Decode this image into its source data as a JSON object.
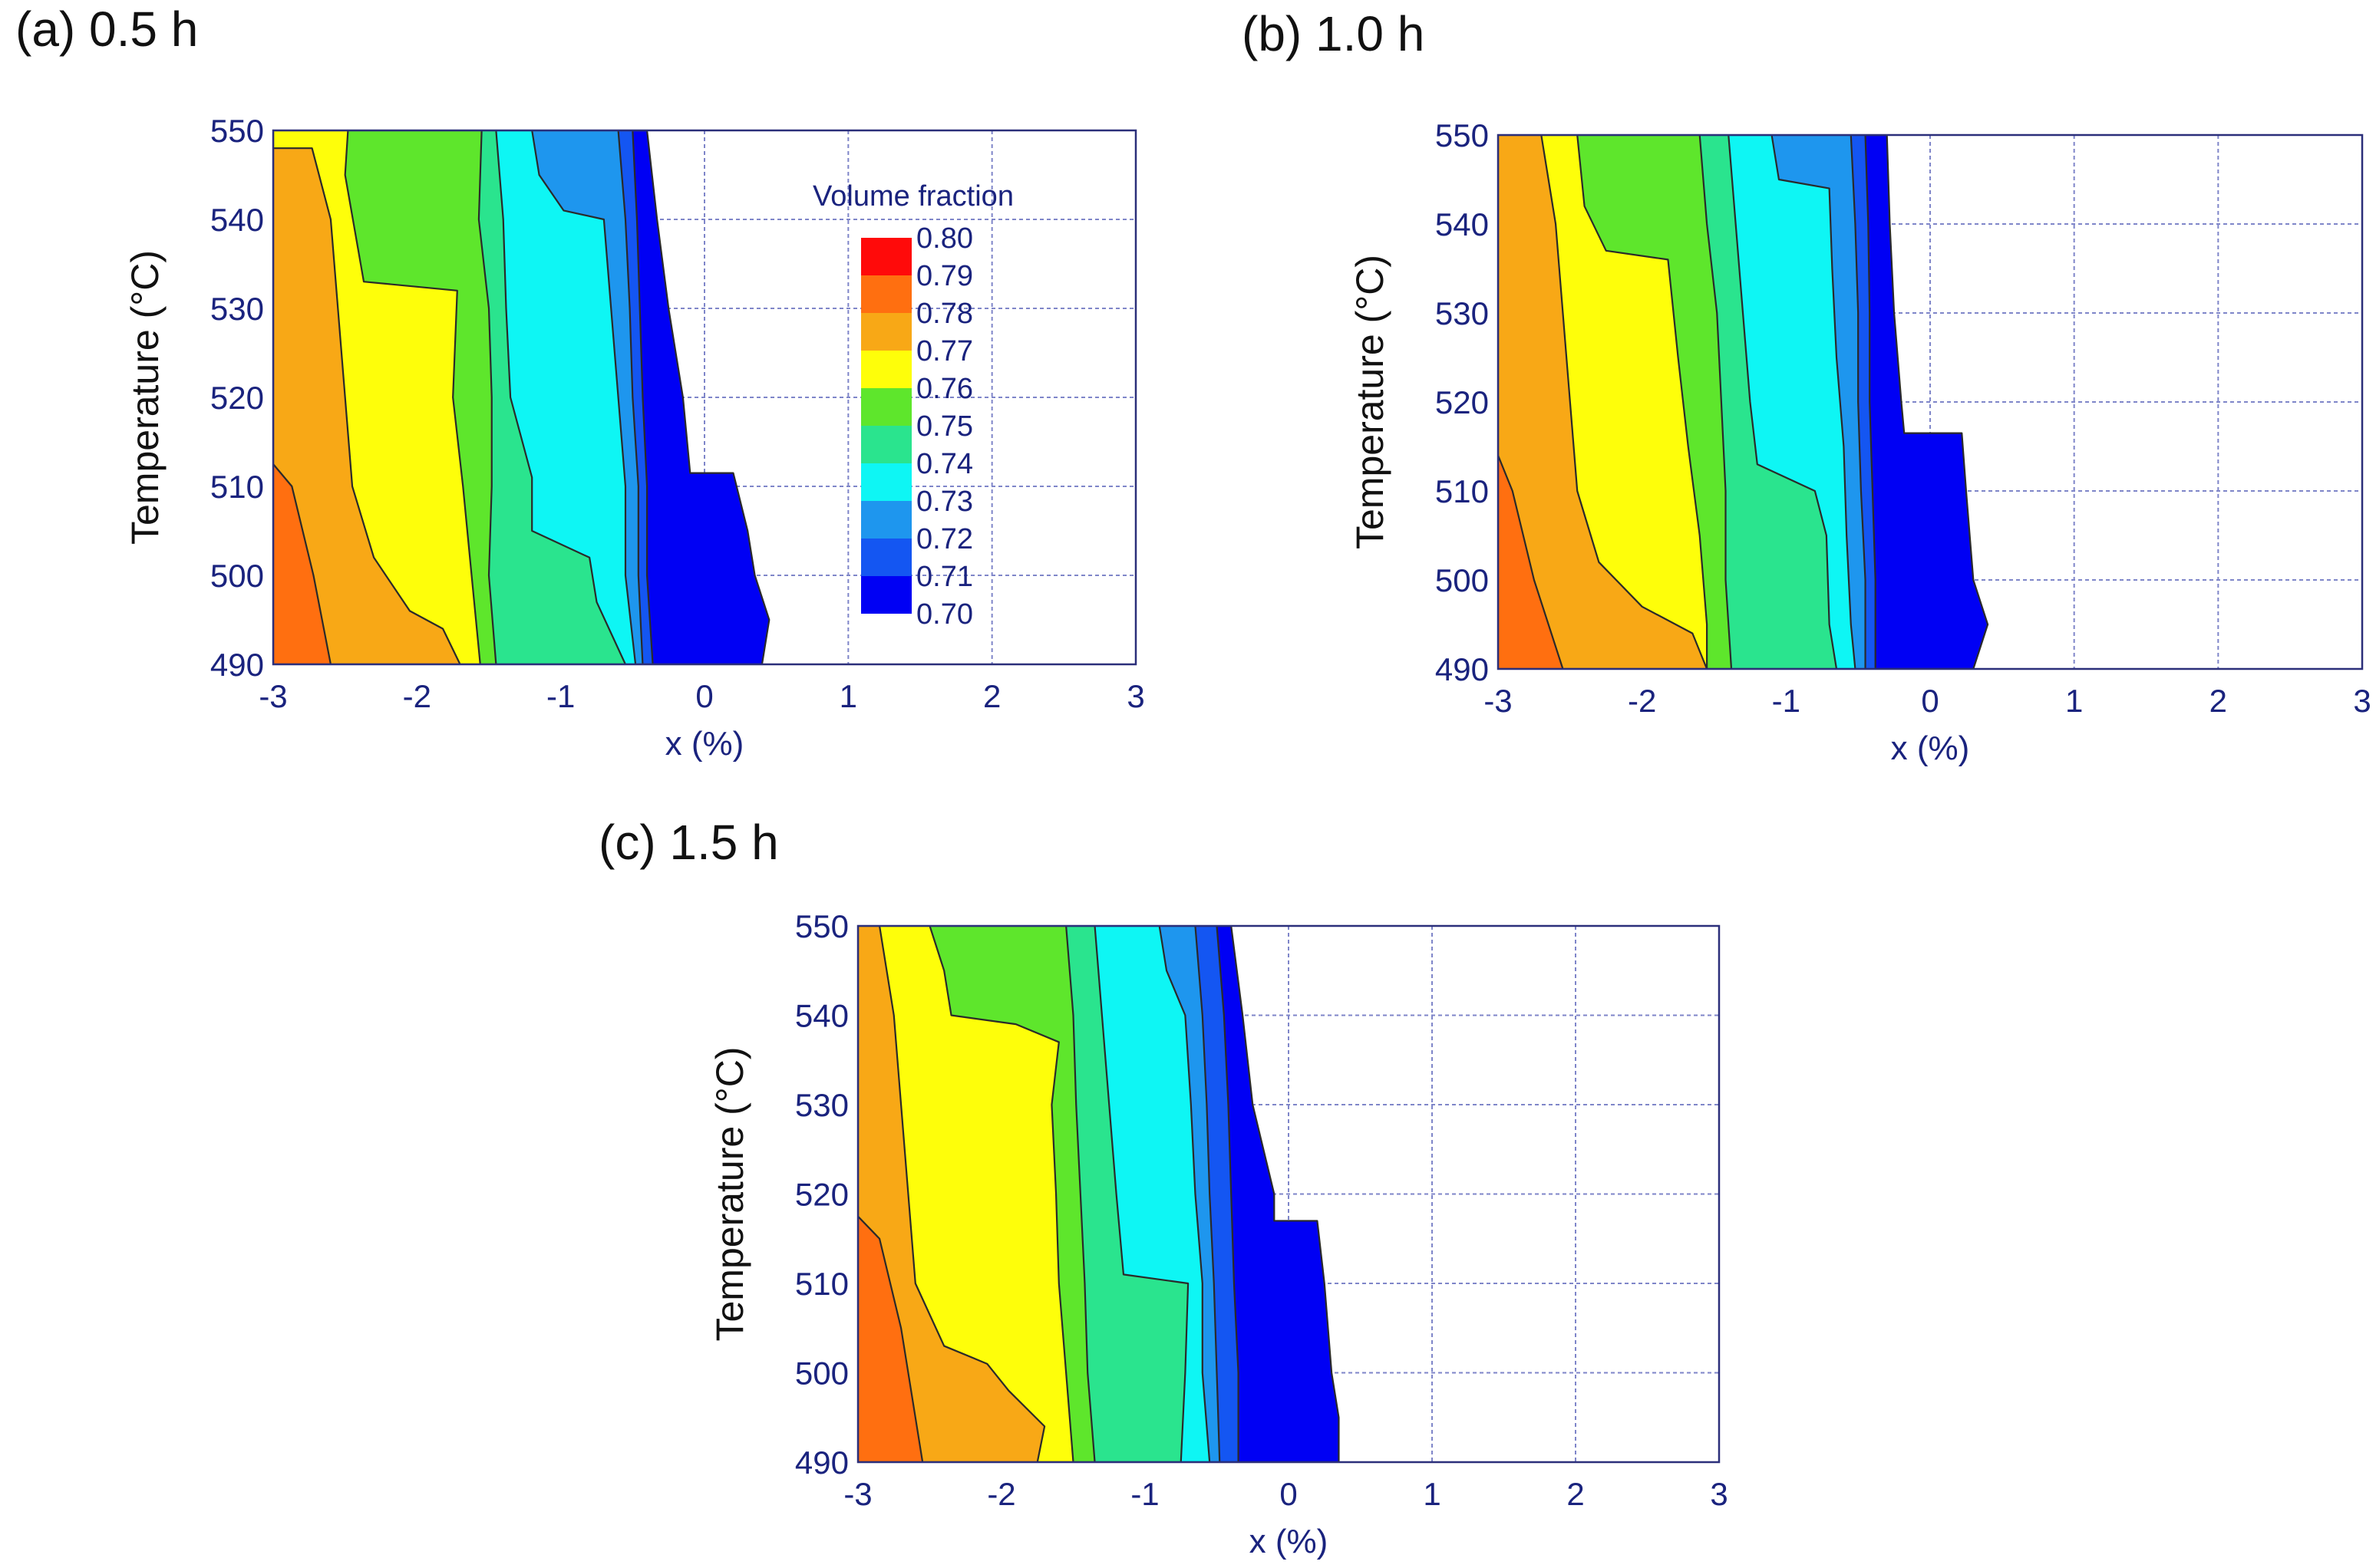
{
  "figure": {
    "colors": {
      "axis_text": "#1a237e",
      "grid": "#7f86c9",
      "frame": "#2b2f7a",
      "contour_line": "#2a2a2a",
      "background": "#ffffff"
    }
  },
  "colorbar": {
    "title": "Volume fraction",
    "levels": [
      "0.80",
      "0.79",
      "0.78",
      "0.77",
      "0.76",
      "0.75",
      "0.74",
      "0.73",
      "0.72",
      "0.71",
      "0.70"
    ],
    "colors": [
      "#ff0a0a",
      "#ff6f10",
      "#f8a816",
      "#fefe0a",
      "#5ee62c",
      "#2ae48e",
      "#0ef6f4",
      "#1e96ee",
      "#1456f2",
      "#0000f4"
    ]
  },
  "chart_data": [
    {
      "type": "filled-contour",
      "label": "(a) 0.5 h",
      "xlabel": "x (%)",
      "ylabel": "Temperature (°C)",
      "xlim": [
        -3,
        3
      ],
      "ylim": [
        490,
        550
      ],
      "x_ticks": [
        "-3",
        "-2",
        "-1",
        "0",
        "1",
        "2",
        "3"
      ],
      "y_ticks": [
        "490",
        "500",
        "510",
        "520",
        "530",
        "540",
        "550"
      ],
      "bands": [
        {
          "value": 0.785,
          "boundary": [
            [
              -3,
              512.5
            ],
            [
              -2.87,
              510
            ],
            [
              -2.72,
              500
            ],
            [
              -2.6,
              490
            ]
          ]
        },
        {
          "value": 0.775,
          "boundary": [
            [
              -2.73,
              548
            ],
            [
              -2.6,
              540
            ],
            [
              -2.55,
              530
            ],
            [
              -2.5,
              520
            ],
            [
              -2.45,
              510
            ],
            [
              -2.3,
              502
            ],
            [
              -2.05,
              496
            ],
            [
              -1.82,
              494
            ],
            [
              -1.7,
              490
            ]
          ]
        },
        {
          "value": 0.765,
          "boundary": [
            [
              -2.48,
              550
            ],
            [
              -2.5,
              545
            ],
            [
              -2.37,
              533
            ],
            [
              -1.72,
              532
            ],
            [
              -1.75,
              520
            ],
            [
              -1.68,
              510
            ],
            [
              -1.62,
              500
            ],
            [
              -1.56,
              490
            ]
          ]
        },
        {
          "value": 0.755,
          "boundary": [
            [
              -1.55,
              550
            ],
            [
              -1.57,
              540
            ],
            [
              -1.5,
              530
            ],
            [
              -1.48,
              520
            ],
            [
              -1.48,
              510
            ],
            [
              -1.5,
              500
            ],
            [
              -1.45,
              490
            ]
          ]
        },
        {
          "value": 0.745,
          "boundary": [
            [
              -1.45,
              550
            ],
            [
              -1.4,
              540
            ],
            [
              -1.38,
              530
            ],
            [
              -1.35,
              520
            ],
            [
              -1.2,
              511
            ],
            [
              -1.2,
              505
            ],
            [
              -0.8,
              502
            ],
            [
              -0.75,
              497
            ],
            [
              -0.55,
              490
            ]
          ]
        },
        {
          "value": 0.735,
          "boundary": [
            [
              -1.2,
              550
            ],
            [
              -1.15,
              545
            ],
            [
              -0.98,
              541
            ],
            [
              -0.7,
              540
            ],
            [
              -0.65,
              530
            ],
            [
              -0.6,
              520
            ],
            [
              -0.55,
              510
            ],
            [
              -0.55,
              500
            ],
            [
              -0.48,
              490
            ]
          ]
        },
        {
          "value": 0.725,
          "boundary": [
            [
              -0.6,
              550
            ],
            [
              -0.55,
              540
            ],
            [
              -0.52,
              530
            ],
            [
              -0.5,
              520
            ],
            [
              -0.46,
              510
            ],
            [
              -0.46,
              500
            ],
            [
              -0.43,
              490
            ]
          ]
        },
        {
          "value": 0.715,
          "boundary": [
            [
              -0.5,
              550
            ],
            [
              -0.47,
              540
            ],
            [
              -0.45,
              530
            ],
            [
              -0.43,
              520
            ],
            [
              -0.4,
              510
            ],
            [
              -0.4,
              500
            ],
            [
              -0.36,
              490
            ]
          ]
        },
        {
          "value": 0.705,
          "boundary": [
            [
              -0.4,
              550
            ],
            [
              -0.33,
              540
            ],
            [
              -0.25,
              530
            ],
            [
              -0.15,
              520
            ],
            [
              -0.1,
              511.5
            ],
            [
              0.2,
              511.5
            ],
            [
              0.3,
              505
            ],
            [
              0.35,
              500
            ],
            [
              0.45,
              495
            ],
            [
              0.4,
              490
            ]
          ]
        }
      ]
    },
    {
      "type": "filled-contour",
      "label": "(b) 1.0 h",
      "xlabel": "x (%)",
      "ylabel": "Temperature (°C)",
      "xlim": [
        -3,
        3
      ],
      "ylim": [
        490,
        550
      ],
      "x_ticks": [
        "-3",
        "-2",
        "-1",
        "0",
        "1",
        "2",
        "3"
      ],
      "y_ticks": [
        "490",
        "500",
        "510",
        "520",
        "530",
        "540",
        "550"
      ],
      "bands": [
        {
          "value": 0.785,
          "boundary": [
            [
              -3,
              514
            ],
            [
              -2.9,
              510
            ],
            [
              -2.75,
              500
            ],
            [
              -2.55,
              490
            ]
          ]
        },
        {
          "value": 0.775,
          "boundary": [
            [
              -2.7,
              550
            ],
            [
              -2.6,
              540
            ],
            [
              -2.55,
              530
            ],
            [
              -2.5,
              520
            ],
            [
              -2.45,
              510
            ],
            [
              -2.3,
              502
            ],
            [
              -2,
              497
            ],
            [
              -1.65,
              494
            ],
            [
              -1.55,
              490
            ]
          ]
        },
        {
          "value": 0.765,
          "boundary": [
            [
              -2.45,
              550
            ],
            [
              -2.4,
              542
            ],
            [
              -2.25,
              537
            ],
            [
              -1.82,
              536
            ],
            [
              -1.75,
              525
            ],
            [
              -1.68,
              515
            ],
            [
              -1.6,
              505
            ],
            [
              -1.55,
              495
            ],
            [
              -1.55,
              490
            ]
          ]
        },
        {
          "value": 0.755,
          "boundary": [
            [
              -1.6,
              550
            ],
            [
              -1.55,
              540
            ],
            [
              -1.48,
              530
            ],
            [
              -1.45,
              520
            ],
            [
              -1.42,
              510
            ],
            [
              -1.42,
              500
            ],
            [
              -1.38,
              490
            ]
          ]
        },
        {
          "value": 0.745,
          "boundary": [
            [
              -1.4,
              550
            ],
            [
              -1.35,
              540
            ],
            [
              -1.3,
              530
            ],
            [
              -1.25,
              520
            ],
            [
              -1.2,
              513
            ],
            [
              -0.8,
              510
            ],
            [
              -0.72,
              505
            ],
            [
              -0.7,
              495
            ],
            [
              -0.65,
              490
            ]
          ]
        },
        {
          "value": 0.735,
          "boundary": [
            [
              -1.1,
              550
            ],
            [
              -1.05,
              545
            ],
            [
              -0.7,
              544
            ],
            [
              -0.68,
              535
            ],
            [
              -0.65,
              525
            ],
            [
              -0.6,
              515
            ],
            [
              -0.58,
              505
            ],
            [
              -0.55,
              495
            ],
            [
              -0.52,
              490
            ]
          ]
        },
        {
          "value": 0.725,
          "boundary": [
            [
              -0.55,
              550
            ],
            [
              -0.52,
              540
            ],
            [
              -0.5,
              530
            ],
            [
              -0.5,
              520
            ],
            [
              -0.48,
              510
            ],
            [
              -0.45,
              500
            ],
            [
              -0.45,
              490
            ]
          ]
        },
        {
          "value": 0.715,
          "boundary": [
            [
              -0.45,
              550
            ],
            [
              -0.43,
              540
            ],
            [
              -0.42,
              530
            ],
            [
              -0.42,
              520
            ],
            [
              -0.4,
              510
            ],
            [
              -0.38,
              500
            ],
            [
              -0.38,
              490
            ]
          ]
        },
        {
          "value": 0.705,
          "boundary": [
            [
              -0.3,
              550
            ],
            [
              -0.28,
              540
            ],
            [
              -0.25,
              530
            ],
            [
              -0.2,
              520
            ],
            [
              -0.18,
              516.5
            ],
            [
              0.22,
              516.5
            ],
            [
              0.25,
              510
            ],
            [
              0.3,
              500
            ],
            [
              0.4,
              495
            ],
            [
              0.3,
              490
            ]
          ]
        }
      ]
    },
    {
      "type": "filled-contour",
      "label": "(c) 1.5 h",
      "xlabel": "x (%)",
      "ylabel": "Temperature (°C)",
      "xlim": [
        -3,
        3
      ],
      "ylim": [
        490,
        550
      ],
      "x_ticks": [
        "-3",
        "-2",
        "-1",
        "0",
        "1",
        "2",
        "3"
      ],
      "y_ticks": [
        "490",
        "500",
        "510",
        "520",
        "530",
        "540",
        "550"
      ],
      "bands": [
        {
          "value": 0.785,
          "boundary": [
            [
              -3,
              517.5
            ],
            [
              -2.85,
              515
            ],
            [
              -2.7,
              505
            ],
            [
              -2.6,
              495
            ],
            [
              -2.55,
              490
            ]
          ]
        },
        {
          "value": 0.775,
          "boundary": [
            [
              -2.85,
              550
            ],
            [
              -2.75,
              540
            ],
            [
              -2.7,
              530
            ],
            [
              -2.65,
              520
            ],
            [
              -2.6,
              510
            ],
            [
              -2.4,
              503
            ],
            [
              -2.1,
              501
            ],
            [
              -1.95,
              498
            ],
            [
              -1.7,
              494
            ],
            [
              -1.75,
              490
            ]
          ]
        },
        {
          "value": 0.765,
          "boundary": [
            [
              -2.5,
              550
            ],
            [
              -2.4,
              545
            ],
            [
              -2.35,
              540
            ],
            [
              -1.9,
              539
            ],
            [
              -1.6,
              537
            ],
            [
              -1.65,
              530
            ],
            [
              -1.62,
              520
            ],
            [
              -1.6,
              510
            ],
            [
              -1.55,
              500
            ],
            [
              -1.5,
              490
            ]
          ]
        },
        {
          "value": 0.755,
          "boundary": [
            [
              -1.55,
              550
            ],
            [
              -1.5,
              540
            ],
            [
              -1.48,
              530
            ],
            [
              -1.45,
              520
            ],
            [
              -1.42,
              510
            ],
            [
              -1.4,
              500
            ],
            [
              -1.35,
              490
            ]
          ]
        },
        {
          "value": 0.745,
          "boundary": [
            [
              -1.35,
              550
            ],
            [
              -1.3,
              540
            ],
            [
              -1.25,
              530
            ],
            [
              -1.2,
              520
            ],
            [
              -1.15,
              511
            ],
            [
              -0.7,
              510
            ],
            [
              -0.72,
              500
            ],
            [
              -0.75,
              490
            ]
          ]
        },
        {
          "value": 0.735,
          "boundary": [
            [
              -0.9,
              550
            ],
            [
              -0.85,
              545
            ],
            [
              -0.72,
              540
            ],
            [
              -0.68,
              530
            ],
            [
              -0.65,
              520
            ],
            [
              -0.6,
              510
            ],
            [
              -0.6,
              500
            ],
            [
              -0.55,
              490
            ]
          ]
        },
        {
          "value": 0.725,
          "boundary": [
            [
              -0.65,
              550
            ],
            [
              -0.6,
              540
            ],
            [
              -0.57,
              530
            ],
            [
              -0.55,
              520
            ],
            [
              -0.52,
              510
            ],
            [
              -0.5,
              500
            ],
            [
              -0.48,
              490
            ]
          ]
        },
        {
          "value": 0.715,
          "boundary": [
            [
              -0.5,
              550
            ],
            [
              -0.45,
              540
            ],
            [
              -0.42,
              530
            ],
            [
              -0.4,
              520
            ],
            [
              -0.38,
              510
            ],
            [
              -0.35,
              500
            ],
            [
              -0.35,
              490
            ]
          ]
        },
        {
          "value": 0.705,
          "boundary": [
            [
              -0.4,
              550
            ],
            [
              -0.32,
              540
            ],
            [
              -0.25,
              530
            ],
            [
              -0.1,
              520
            ],
            [
              -0.1,
              517
            ],
            [
              0.2,
              517
            ],
            [
              0.25,
              510
            ],
            [
              0.3,
              500
            ],
            [
              0.35,
              495
            ],
            [
              0.35,
              490
            ]
          ]
        }
      ]
    }
  ]
}
